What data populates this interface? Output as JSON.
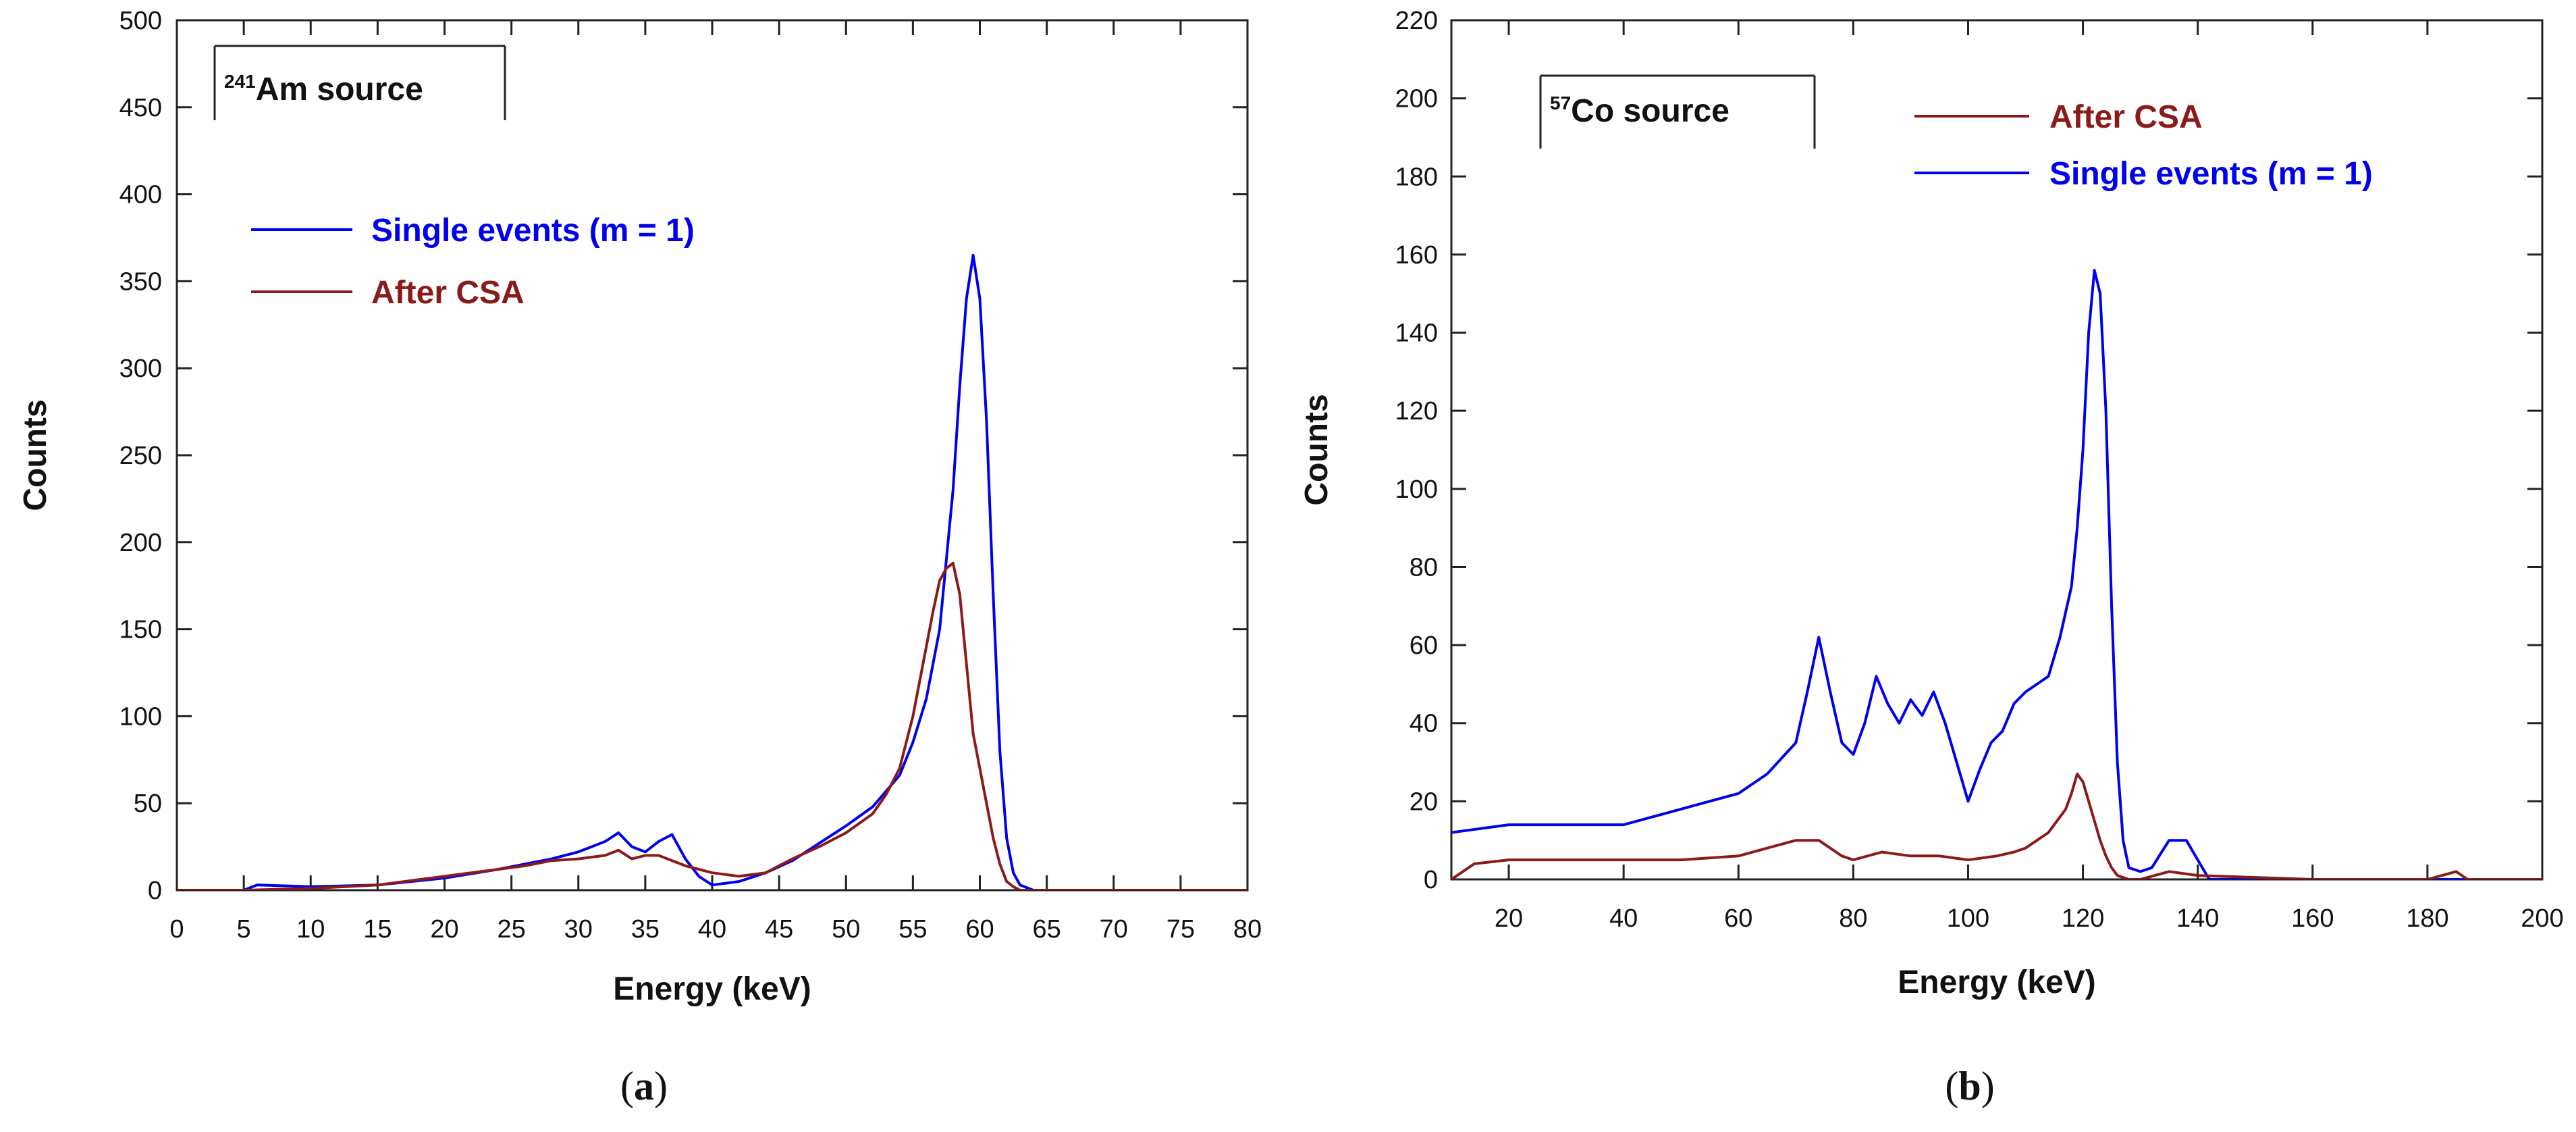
{
  "chart_data": [
    {
      "panel": "a",
      "type": "line",
      "caption_letter": "a",
      "xlabel": "Energy (keV)",
      "ylabel": "Counts",
      "xlim": [
        0,
        80
      ],
      "ylim": [
        0,
        500
      ],
      "xticks": [
        0,
        5,
        10,
        15,
        20,
        25,
        30,
        35,
        40,
        45,
        50,
        55,
        60,
        65,
        70,
        75,
        80
      ],
      "yticks": [
        0,
        50,
        100,
        150,
        200,
        250,
        300,
        350,
        400,
        450,
        500
      ],
      "annotation": {
        "sup": "241",
        "text": "Am source"
      },
      "legend": [
        "Single events (m = 1)",
        "After CSA"
      ],
      "series": [
        {
          "name": "Single events (m = 1)",
          "color": "#0000ee",
          "x": [
            0,
            5,
            6,
            10,
            15,
            20,
            24,
            26,
            28,
            30,
            32,
            33,
            34,
            35,
            36,
            37,
            38,
            39,
            40,
            42,
            44,
            46,
            48,
            50,
            52,
            54,
            55,
            56,
            57,
            58,
            58.5,
            59,
            59.5,
            60,
            60.5,
            61,
            61.5,
            62,
            62.5,
            63,
            64,
            70,
            80
          ],
          "values": [
            0,
            0,
            3,
            2,
            3,
            7,
            12,
            15,
            18,
            22,
            28,
            33,
            25,
            22,
            28,
            32,
            18,
            8,
            3,
            5,
            10,
            17,
            27,
            37,
            48,
            66,
            85,
            110,
            150,
            230,
            290,
            340,
            365,
            340,
            270,
            170,
            80,
            30,
            10,
            3,
            0,
            0,
            0
          ]
        },
        {
          "name": "After CSA",
          "color": "#8b1a1a",
          "x": [
            0,
            5,
            10,
            15,
            20,
            24,
            26,
            28,
            30,
            32,
            33,
            34,
            35,
            36,
            38,
            40,
            42,
            44,
            46,
            48,
            50,
            52,
            53,
            54,
            55,
            56,
            56.5,
            57,
            57.5,
            58,
            58.5,
            59,
            59.5,
            60,
            60.5,
            61,
            61.5,
            62,
            62.5,
            63,
            64,
            80
          ],
          "values": [
            0,
            0,
            1,
            3,
            8,
            12,
            14,
            17,
            18,
            20,
            23,
            18,
            20,
            20,
            14,
            10,
            8,
            10,
            18,
            25,
            33,
            44,
            55,
            70,
            100,
            140,
            160,
            178,
            185,
            188,
            170,
            130,
            90,
            70,
            50,
            30,
            15,
            5,
            2,
            0,
            0,
            0
          ]
        }
      ]
    },
    {
      "panel": "b",
      "type": "line",
      "caption_letter": "b",
      "xlabel": "Energy (keV)",
      "ylabel": "Counts",
      "xlim": [
        10,
        200
      ],
      "ylim": [
        0,
        220
      ],
      "xticks": [
        20,
        40,
        60,
        80,
        100,
        120,
        140,
        160,
        180,
        200
      ],
      "yticks": [
        0,
        20,
        40,
        60,
        80,
        100,
        120,
        140,
        160,
        180,
        200,
        220
      ],
      "annotation": {
        "sup": "57",
        "text": "Co source"
      },
      "legend": [
        "After CSA",
        "Single events (m = 1)"
      ],
      "series": [
        {
          "name": "Single events (m = 1)",
          "color": "#0000ee",
          "x": [
            10,
            20,
            30,
            40,
            50,
            60,
            65,
            70,
            72,
            74,
            76,
            78,
            80,
            82,
            84,
            86,
            88,
            90,
            92,
            94,
            96,
            98,
            100,
            102,
            104,
            106,
            108,
            110,
            112,
            114,
            116,
            118,
            119,
            120,
            121,
            122,
            123,
            124,
            125,
            126,
            127,
            128,
            130,
            132,
            135,
            138,
            140,
            142,
            150,
            200
          ],
          "values": [
            12,
            14,
            14,
            14,
            18,
            22,
            27,
            35,
            48,
            62,
            48,
            35,
            32,
            40,
            52,
            45,
            40,
            46,
            42,
            48,
            40,
            30,
            20,
            28,
            35,
            38,
            45,
            48,
            50,
            52,
            62,
            75,
            90,
            110,
            140,
            156,
            150,
            120,
            70,
            30,
            10,
            3,
            2,
            3,
            10,
            10,
            5,
            0,
            0,
            0
          ]
        },
        {
          "name": "After CSA",
          "color": "#8b1a1a",
          "x": [
            10,
            14,
            20,
            30,
            40,
            50,
            60,
            65,
            70,
            72,
            74,
            76,
            78,
            80,
            85,
            90,
            95,
            100,
            105,
            108,
            110,
            112,
            114,
            116,
            117,
            118,
            119,
            120,
            121,
            122,
            123,
            124,
            125,
            126,
            128,
            130,
            135,
            140,
            160,
            180,
            185,
            187,
            200
          ],
          "values": [
            0,
            4,
            5,
            5,
            5,
            5,
            6,
            8,
            10,
            10,
            10,
            8,
            6,
            5,
            7,
            6,
            6,
            5,
            6,
            7,
            8,
            10,
            12,
            16,
            18,
            22,
            27,
            25,
            20,
            15,
            10,
            6,
            3,
            1,
            0,
            0,
            2,
            1,
            0,
            0,
            2,
            0,
            0
          ]
        }
      ]
    }
  ]
}
